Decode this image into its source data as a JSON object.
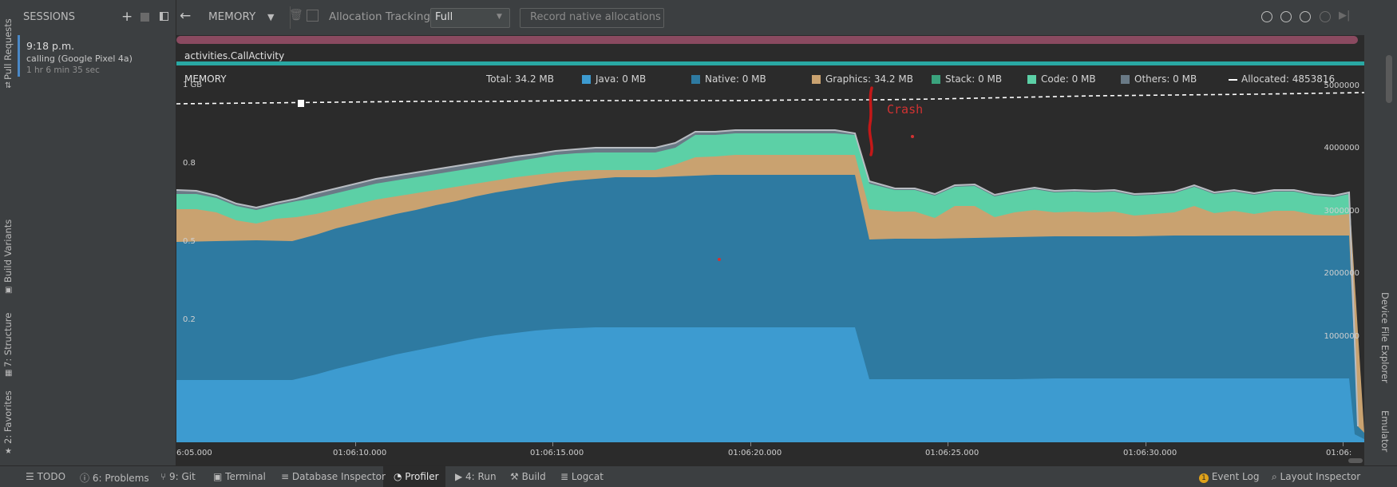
{
  "left_tabs": {
    "pull_requests": "Pull Requests",
    "build_variants": "Build Variants",
    "structure": "7: Structure",
    "favorites": "2: Favorites"
  },
  "sessions": {
    "title": "SESSIONS",
    "item": {
      "time": "9:18 p.m.",
      "name": "calling (Google Pixel 4a)",
      "duration": "1 hr 6 min 35 sec"
    }
  },
  "toolbar": {
    "profiler_label": "MEMORY",
    "allocation_tracking_label": "Allocation Tracking",
    "allocation_tracking_value": "Full",
    "record_native_label": "Record native allocations"
  },
  "activity": {
    "name": "activities.CallActivity"
  },
  "chart_header": {
    "title": "MEMORY",
    "total": "Total: 34.2 MB",
    "legend": [
      {
        "label": "Java: 0 MB",
        "color": "#3d9bd0"
      },
      {
        "label": "Native: 0 MB",
        "color": "#2e7aa1"
      },
      {
        "label": "Graphics: 34.2 MB",
        "color": "#c9a270"
      },
      {
        "label": "Stack: 0 MB",
        "color": "#3aa37d"
      },
      {
        "label": "Code: 0 MB",
        "color": "#5cd0a6"
      },
      {
        "label": "Others: 0 MB",
        "color": "#6a7a86"
      }
    ],
    "allocated": "Allocated: 4853816"
  },
  "annotation": {
    "crash_label": "Crash"
  },
  "chart_data": {
    "type": "area",
    "x_ticks": [
      "6:05.000",
      "01:06:10.000",
      "01:06:15.000",
      "01:06:20.000",
      "01:06:25.000",
      "01:06:30.000",
      "01:06:"
    ],
    "y_left_ticks": [
      "1 GB",
      "0.8",
      "0.5",
      "0.2"
    ],
    "y_right_ticks": [
      "5000000",
      "4000000",
      "3000000",
      "2000000",
      "1000000"
    ],
    "series_order": [
      "Java",
      "Native",
      "Graphics",
      "Code",
      "Others"
    ],
    "colors": {
      "Java": "#3d9bd0",
      "Native": "#2e7aa1",
      "Graphics": "#c9a270",
      "Code": "#5cd0a6",
      "Others": "#6a7a86",
      "Allocated": "#ffffff"
    }
  },
  "status_bar": {
    "todo": "TODO",
    "problems": "6: Problems",
    "git": "9: Git",
    "terminal": "Terminal",
    "database_inspector": "Database Inspector",
    "profiler": "Profiler",
    "run": "4: Run",
    "build": "Build",
    "logcat": "Logcat",
    "event_log": "Event Log",
    "layout_inspector": "Layout Inspector"
  },
  "right_tabs": {
    "device_file_explorer": "Device File Explorer",
    "emulator": "Emulator"
  }
}
